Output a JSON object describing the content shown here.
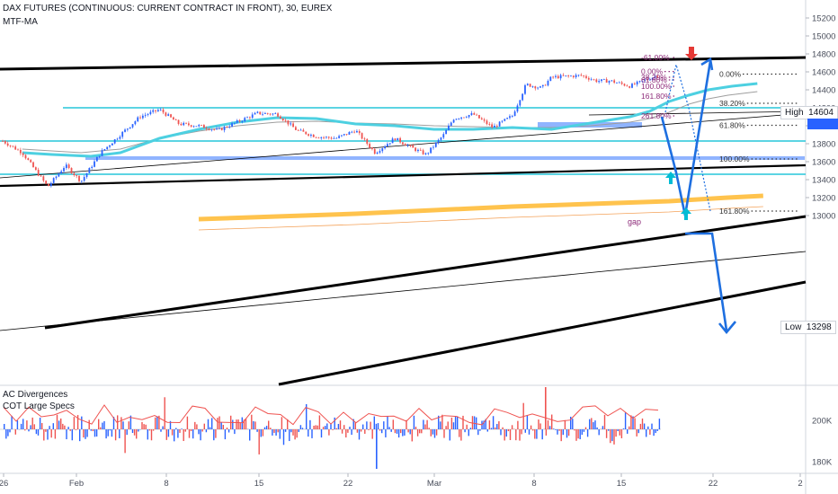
{
  "header": {
    "title": "DAX FUTURES (CONTINUOUS: CURRENT CONTRACT IN FRONT), 30, EUREX",
    "indicator_main": "MTF-MA",
    "indicator_sub1": "AC Divergences",
    "indicator_sub2": "COT Large Specs"
  },
  "colors": {
    "up": "#2962ff",
    "down": "#ef5350",
    "ma_fast": "#4dd0e1",
    "ma_slow": "#9e9e9e",
    "trend": "#000000",
    "fib": "#8e2c7a",
    "cyan_level": "#26c6da",
    "zone": "#90b4ff",
    "cot": "#ffc34d",
    "arrow": "#1e6fe0",
    "red_arrow": "#e53935"
  },
  "tags": {
    "high_label": "High",
    "high_value": "14604",
    "low_label": "Low",
    "low_value": "13298"
  },
  "annotations": {
    "gap": "gap"
  },
  "chart_data": [
    {
      "type": "candlestick",
      "title": "DAX FUTURES (CONTINUOUS: CURRENT CONTRACT IN FRONT), 30, EUREX",
      "x_ticks": [
        "26",
        "Feb",
        "8",
        "15",
        "22",
        "Mar",
        "8",
        "15",
        "22",
        "2"
      ],
      "y_ticks": [
        13000,
        13200,
        13400,
        13600,
        13800,
        14000,
        14200,
        14400,
        14600,
        14800,
        15000,
        15200
      ],
      "ylim": [
        12950,
        15250
      ],
      "xlim_days": [
        0,
        36.3
      ],
      "series": [
        {
          "name": "MTF-MA",
          "points": [
            [
              1,
              13700
            ],
            [
              2.5,
              13680
            ],
            [
              4.5,
              13660
            ],
            [
              6,
              13700
            ],
            [
              8,
              13860
            ],
            [
              10,
              13960
            ],
            [
              12,
              14040
            ],
            [
              14,
              14090
            ],
            [
              16,
              14080
            ],
            [
              18,
              14020
            ],
            [
              20,
              14000
            ],
            [
              22,
              13960
            ],
            [
              24,
              13960
            ],
            [
              26,
              13980
            ],
            [
              28,
              13960
            ],
            [
              30,
              14030
            ],
            [
              32,
              14100
            ],
            [
              33,
              14160
            ],
            [
              34,
              14270
            ],
            [
              35,
              14340
            ],
            [
              36,
              14400
            ],
            [
              37.2,
              14440
            ],
            [
              38.5,
              14470
            ]
          ]
        },
        {
          "name": "MTF-MA slow",
          "points": [
            [
              1,
              13740
            ],
            [
              4,
              13700
            ],
            [
              6,
              13740
            ],
            [
              8,
              13860
            ],
            [
              10,
              13940
            ],
            [
              12,
              14000
            ],
            [
              14,
              14040
            ],
            [
              16,
              14050
            ],
            [
              18,
              14030
            ],
            [
              20,
              14020
            ],
            [
              22,
              14000
            ],
            [
              24,
              13990
            ],
            [
              26,
              13980
            ],
            [
              28,
              13980
            ],
            [
              30,
              14000
            ],
            [
              32,
              14040
            ],
            [
              33,
              14080
            ],
            [
              34,
              14150
            ],
            [
              35,
              14240
            ],
            [
              36,
              14300
            ],
            [
              37,
              14340
            ],
            [
              38.5,
              14380
            ]
          ]
        },
        {
          "name": "COT Large Specs",
          "points": [
            [
              10,
              12960
            ],
            [
              14,
              12990
            ],
            [
              18,
              13020
            ],
            [
              22,
              13060
            ],
            [
              26,
              13100
            ],
            [
              30,
              13130
            ],
            [
              34,
              13160
            ],
            [
              37,
              13200
            ],
            [
              38.8,
              13220
            ]
          ]
        }
      ],
      "fib_levels": [
        {
          "label": "-61.00%",
          "value": 14760
        },
        {
          "label": "0.00%",
          "value": 14604
        },
        {
          "label": "38.20%",
          "value": 14540
        },
        {
          "label": "61.80%",
          "value": 14510
        },
        {
          "label": "100.00%",
          "value": 14440
        },
        {
          "label": "161.80%",
          "value": 14330
        },
        {
          "label": "261.80%",
          "value": 14110
        },
        {
          "label": "0.00%",
          "value": 14575
        },
        {
          "label": "38.20%",
          "value": 14250
        },
        {
          "label": "61.80%",
          "value": 14005
        },
        {
          "label": "100.00%",
          "value": 13630
        },
        {
          "label": "161.80%",
          "value": 13050
        }
      ],
      "levels": [
        {
          "name": "cyan-level-1",
          "value": 14200
        },
        {
          "name": "cyan-level-2",
          "value": 13830
        },
        {
          "name": "cyan-level-3",
          "value": 13460
        },
        {
          "name": "zone-1",
          "value": 13640
        },
        {
          "name": "zone-gap",
          "value": 14010
        }
      ],
      "tags": {
        "high": 14604,
        "low": 13298
      }
    },
    {
      "type": "bar",
      "title": "AC Divergences",
      "y_ticks": [
        "200K",
        "180K"
      ]
    }
  ]
}
